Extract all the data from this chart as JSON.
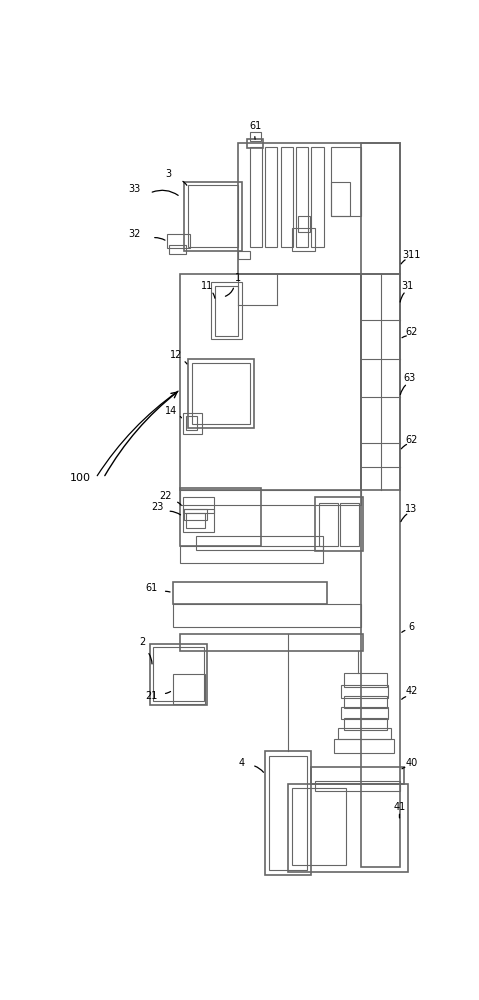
{
  "bg_color": "#ffffff",
  "lc": "#666666",
  "lc_dark": "#444444",
  "lw": 0.8,
  "lw2": 1.2
}
